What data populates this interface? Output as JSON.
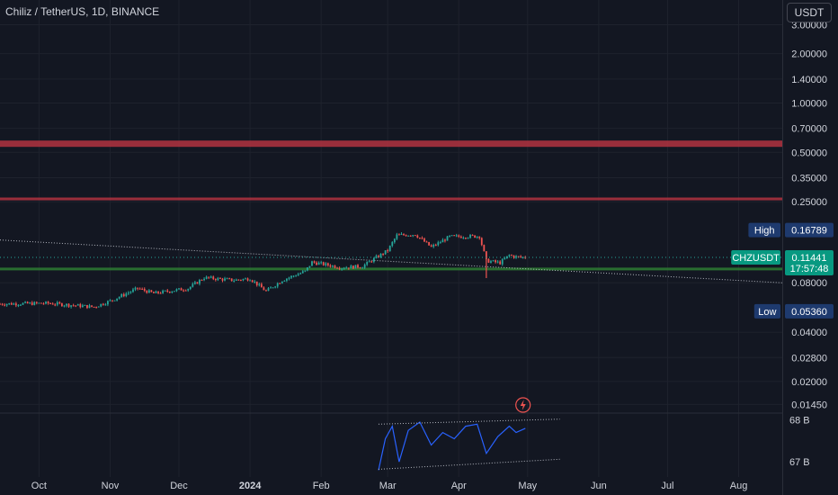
{
  "legend": {
    "symbol": "Chiliz / TetherUS, 1D, BINANCE"
  },
  "currency_button": "USDT",
  "price_axis": {
    "ticks": [
      {
        "label": "3.00000",
        "value": 3.0
      },
      {
        "label": "2.00000",
        "value": 2.0
      },
      {
        "label": "1.40000",
        "value": 1.4
      },
      {
        "label": "1.00000",
        "value": 1.0
      },
      {
        "label": "0.70000",
        "value": 0.7
      },
      {
        "label": "0.50000",
        "value": 0.5
      },
      {
        "label": "0.35000",
        "value": 0.35
      },
      {
        "label": "0.25000",
        "value": 0.25
      },
      {
        "label": "0.08000",
        "value": 0.08
      },
      {
        "label": "0.04000",
        "value": 0.04
      },
      {
        "label": "0.02800",
        "value": 0.028
      },
      {
        "label": "0.02000",
        "value": 0.02
      },
      {
        "label": "0.01450",
        "value": 0.0145
      }
    ]
  },
  "badges": {
    "high": {
      "label": "High",
      "value": "0.16789",
      "color": "#1e3a6e"
    },
    "current": {
      "label": "CHZUSDT",
      "price": "0.11441",
      "countdown": "17:57:48",
      "color": "#089981"
    },
    "low": {
      "label": "Low",
      "value": "0.05360",
      "color": "#1e3a6e"
    }
  },
  "volume_axis": {
    "ticks": [
      "68 B",
      "67 B"
    ]
  },
  "time_axis": {
    "labels": [
      {
        "text": "Oct",
        "bold": false
      },
      {
        "text": "Nov",
        "bold": false
      },
      {
        "text": "Dec",
        "bold": false
      },
      {
        "text": "2024",
        "bold": true
      },
      {
        "text": "Feb",
        "bold": false
      },
      {
        "text": "Mar",
        "bold": false
      },
      {
        "text": "Apr",
        "bold": false
      },
      {
        "text": "May",
        "bold": false
      },
      {
        "text": "Jun",
        "bold": false
      },
      {
        "text": "Jul",
        "bold": false
      },
      {
        "text": "Aug",
        "bold": false
      }
    ]
  },
  "colors": {
    "up": "#26a69a",
    "down": "#ef5350",
    "resistance_zone": "#b2333f",
    "support_zone": "#2e7d32",
    "indicator_line": "#2962ff",
    "background": "#131722",
    "grid": "#1e222d"
  },
  "chart_data": {
    "type": "candlestick",
    "title": "Chiliz / TetherUS, 1D, BINANCE",
    "scale": "log",
    "ylim": [
      0.0135,
      3.3
    ],
    "x_range": [
      "2023-09-14",
      "2024-08-20"
    ],
    "ohlc_anchors": [
      {
        "date": "2023-09-14",
        "close": 0.0595
      },
      {
        "date": "2023-10-05",
        "close": 0.06
      },
      {
        "date": "2023-10-25",
        "close": 0.057
      },
      {
        "date": "2023-11-01",
        "close": 0.062
      },
      {
        "date": "2023-11-13",
        "close": 0.074
      },
      {
        "date": "2023-11-20",
        "close": 0.069
      },
      {
        "date": "2023-12-05",
        "close": 0.074
      },
      {
        "date": "2023-12-12",
        "close": 0.086
      },
      {
        "date": "2023-12-25",
        "close": 0.083
      },
      {
        "date": "2024-01-01",
        "close": 0.085
      },
      {
        "date": "2024-01-08",
        "close": 0.071
      },
      {
        "date": "2024-01-15",
        "close": 0.083
      },
      {
        "date": "2024-01-25",
        "close": 0.094
      },
      {
        "date": "2024-01-28",
        "close": 0.107
      },
      {
        "date": "2024-02-10",
        "close": 0.099
      },
      {
        "date": "2024-02-19",
        "close": 0.101
      },
      {
        "date": "2024-03-01",
        "close": 0.126
      },
      {
        "date": "2024-03-05",
        "close": 0.156
      },
      {
        "date": "2024-03-13",
        "close": 0.158
      },
      {
        "date": "2024-03-20",
        "close": 0.132
      },
      {
        "date": "2024-03-28",
        "close": 0.153
      },
      {
        "date": "2024-04-10",
        "close": 0.154
      },
      {
        "date": "2024-04-13",
        "close": 0.109
      },
      {
        "date": "2024-04-19",
        "close": 0.106
      },
      {
        "date": "2024-04-23",
        "close": 0.118
      },
      {
        "date": "2024-04-26",
        "close": 0.115
      },
      {
        "date": "2024-04-30",
        "close": 0.1144
      }
    ],
    "levels": {
      "high": 0.16789,
      "low": 0.0536,
      "last": 0.11441
    },
    "zones": [
      {
        "kind": "resistance",
        "from": 0.54,
        "to": 0.59
      },
      {
        "kind": "resistance",
        "from": 0.255,
        "to": 0.265
      },
      {
        "kind": "support",
        "from": 0.0955,
        "to": 0.099
      }
    ],
    "trendline": {
      "from": {
        "date": "2023-09-14",
        "price": 0.146
      },
      "to": {
        "date": "2024-08-20",
        "price": 0.08
      }
    },
    "volume_indicator": {
      "unit": "B",
      "ylim": [
        66.7,
        68.1
      ],
      "values": [
        {
          "date": "2024-02-26",
          "value": 66.8
        },
        {
          "date": "2024-02-29",
          "value": 67.55
        },
        {
          "date": "2024-03-03",
          "value": 67.85
        },
        {
          "date": "2024-03-06",
          "value": 67.0
        },
        {
          "date": "2024-03-10",
          "value": 67.75
        },
        {
          "date": "2024-03-15",
          "value": 67.95
        },
        {
          "date": "2024-03-20",
          "value": 67.4
        },
        {
          "date": "2024-03-25",
          "value": 67.7
        },
        {
          "date": "2024-03-30",
          "value": 67.55
        },
        {
          "date": "2024-04-04",
          "value": 67.85
        },
        {
          "date": "2024-04-09",
          "value": 67.9
        },
        {
          "date": "2024-04-13",
          "value": 67.2
        },
        {
          "date": "2024-04-18",
          "value": 67.6
        },
        {
          "date": "2024-04-23",
          "value": 67.85
        },
        {
          "date": "2024-04-26",
          "value": 67.7
        },
        {
          "date": "2024-04-30",
          "value": 67.8
        }
      ],
      "channel_upper": [
        {
          "date": "2024-02-26",
          "value": 67.9
        },
        {
          "date": "2024-05-15",
          "value": 68.02
        }
      ],
      "channel_lower": [
        {
          "date": "2024-02-26",
          "value": 66.82
        },
        {
          "date": "2024-05-15",
          "value": 67.06
        }
      ]
    }
  }
}
